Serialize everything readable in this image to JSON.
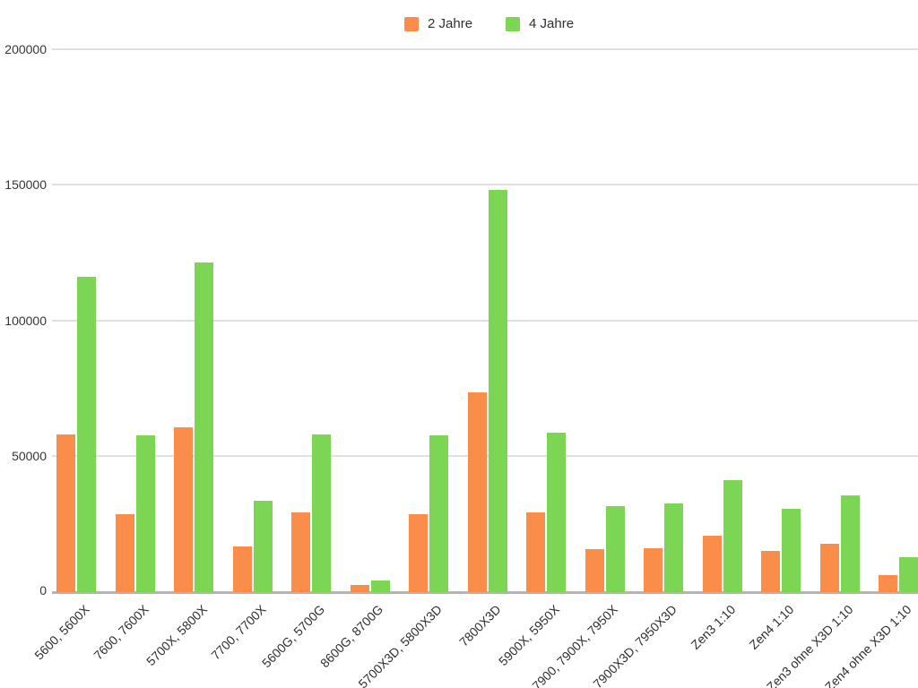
{
  "legend": {
    "items": [
      {
        "label": "2 Jahre",
        "color": "#fb8d4b"
      },
      {
        "label": "4 Jahre",
        "color": "#7cd553"
      }
    ]
  },
  "chart_data": {
    "type": "bar",
    "title": "",
    "xlabel": "",
    "ylabel": "",
    "categories": [
      "5600, 5600X",
      "7600, 7600X",
      "5700X, 5800X",
      "7700, 7700X",
      "5600G, 5700G",
      "8600G, 8700G",
      "5700X3D, 5800X3D",
      "7800X3D",
      "5900X, 5950X",
      "7900, 7900X, 7950X",
      "7900X3D, 7950X3D",
      "Zen3 1:10",
      "Zen4 1:10",
      "Zen3 ohne X3D 1:10",
      "Zen4 ohne X3D 1:10"
    ],
    "series": [
      {
        "name": "2 Jahre",
        "color": "#fb8d4b",
        "values": [
          58000,
          28500,
          60500,
          16500,
          29000,
          2400,
          28500,
          73500,
          29000,
          15500,
          16000,
          20500,
          15000,
          17500,
          6000
        ]
      },
      {
        "name": "4 Jahre",
        "color": "#7cd553",
        "values": [
          116000,
          57500,
          121500,
          33500,
          58000,
          4000,
          57500,
          148000,
          58500,
          31500,
          32500,
          41000,
          30500,
          35500,
          12500
        ]
      }
    ],
    "ylim": [
      0,
      200000
    ],
    "yticks": [
      0,
      50000,
      100000,
      150000,
      200000
    ],
    "ytick_labels": [
      "0",
      "50000",
      "100000",
      "150000",
      "200000"
    ],
    "grid": true,
    "legend_position": "top-center"
  },
  "style_colors": {
    "gridline": "#e0e0e0",
    "axis_line": "#b4b4b4",
    "tick_text": "#363636",
    "background": "#ffffff"
  }
}
